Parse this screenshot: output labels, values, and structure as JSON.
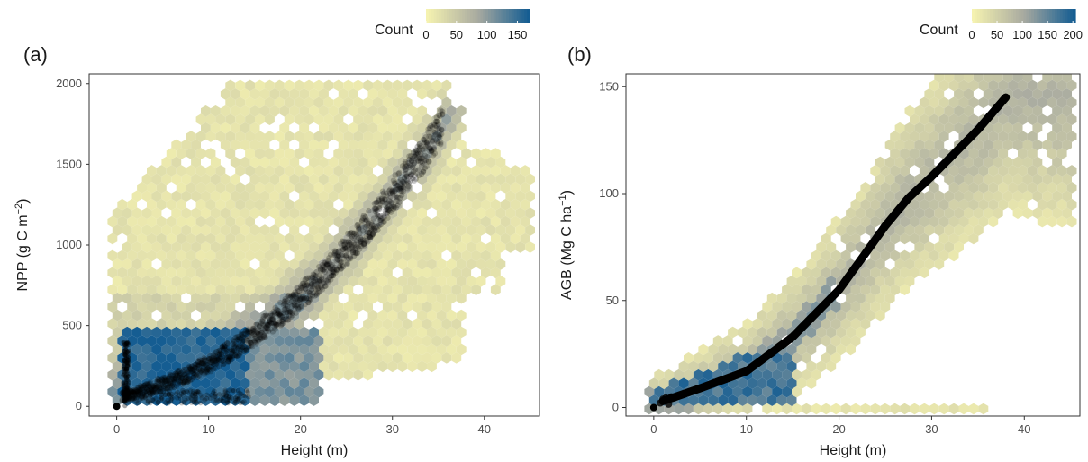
{
  "colors": {
    "low": "#f5f2b0",
    "high": "#155d92",
    "points": "#000000",
    "border": "#333333"
  },
  "chart_data": [
    {
      "type": "heatmap",
      "panel_label": "(a)",
      "xlabel": "Height (m)",
      "ylabel": "NPP (g C m",
      "ylabel_sup": "−2",
      "ylabel_end": ")",
      "xlim": [
        -3,
        46
      ],
      "ylim": [
        -60,
        2060
      ],
      "xticks": [
        0,
        10,
        20,
        30,
        40
      ],
      "yticks": [
        0,
        500,
        1000,
        1500,
        2000
      ],
      "legend": {
        "title": "Count",
        "ticks": [
          0,
          50,
          100,
          150
        ],
        "max": 170,
        "placement": "top-right"
      },
      "hexbin": {
        "blue_band": {
          "x": [
            0.5,
            22.5
          ],
          "y": [
            0,
            500
          ]
        },
        "yellow_cloud": {
          "x": [
            -1,
            45
          ],
          "y": [
            0,
            2000
          ]
        }
      },
      "overlay": {
        "type": "scatter",
        "description": "dense semi-transparent points",
        "x": [
          0.5,
          3,
          6,
          10,
          14,
          18,
          22,
          26,
          28,
          30,
          33,
          35
        ],
        "y": [
          60,
          130,
          190,
          280,
          400,
          560,
          780,
          1020,
          1180,
          1270,
          1440,
          1560
        ]
      }
    },
    {
      "type": "heatmap",
      "panel_label": "(b)",
      "xlabel": "Height (m)",
      "ylabel": "AGB (Mg C ha",
      "ylabel_sup": "−1",
      "ylabel_end": ")",
      "xlim": [
        -3,
        46
      ],
      "ylim": [
        -4,
        156
      ],
      "xticks": [
        0,
        10,
        20,
        30,
        40
      ],
      "yticks": [
        0,
        50,
        100,
        150
      ],
      "legend": {
        "title": "Count",
        "ticks": [
          0,
          50,
          100,
          150,
          200
        ],
        "max": 205,
        "placement": "top-right"
      },
      "hexbin": {
        "blue_band": {
          "x": [
            0,
            15
          ],
          "y": [
            0,
            25
          ]
        },
        "yellow_cloud": {
          "x": [
            -1,
            45
          ],
          "y": [
            0,
            150
          ]
        }
      },
      "overlay": {
        "type": "line",
        "description": "thick black fitted curve",
        "x": [
          1,
          5,
          10,
          15,
          20,
          25,
          27.5,
          30,
          35,
          38
        ],
        "y": [
          3,
          9,
          17,
          33,
          55,
          85,
          98,
          108,
          130,
          145
        ]
      }
    }
  ]
}
